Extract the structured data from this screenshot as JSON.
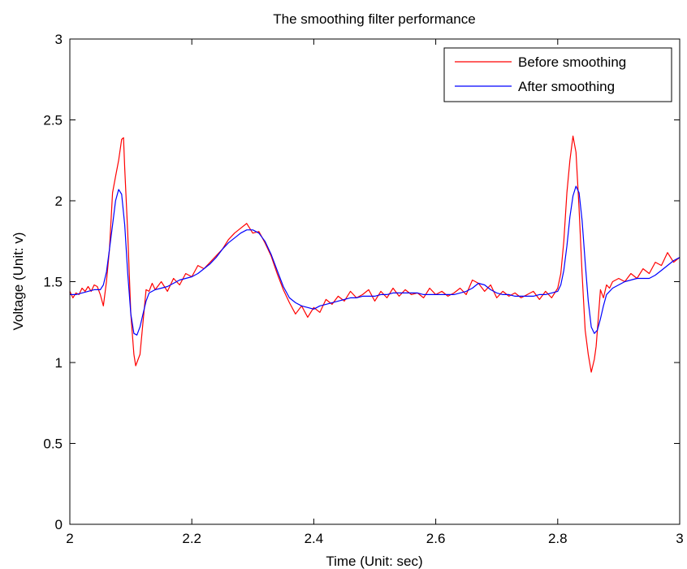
{
  "chart_data": {
    "type": "line",
    "title": "The smoothing filter performance",
    "xlabel": "Time (Unit: sec)",
    "ylabel": "Voltage (Unit: v)",
    "xlim": [
      2,
      3
    ],
    "ylim": [
      0,
      3
    ],
    "xticks": [
      2,
      2.2,
      2.4,
      2.6,
      2.8,
      3
    ],
    "xtick_labels": [
      "2",
      "2.2",
      "2.4",
      "2.6",
      "2.8",
      "3"
    ],
    "yticks": [
      0,
      0.5,
      1,
      1.5,
      2,
      2.5,
      3
    ],
    "ytick_labels": [
      "0",
      "0.5",
      "1",
      "1.5",
      "2",
      "2.5",
      "3"
    ],
    "grid": false,
    "legend_position": "top-right",
    "series": [
      {
        "name": "Before smoothing",
        "color": "#ff0000",
        "x": [
          2.0,
          2.005,
          2.01,
          2.015,
          2.02,
          2.025,
          2.03,
          2.035,
          2.04,
          2.045,
          2.05,
          2.055,
          2.06,
          2.065,
          2.07,
          2.075,
          2.08,
          2.085,
          2.088,
          2.09,
          2.095,
          2.1,
          2.105,
          2.108,
          2.112,
          2.115,
          2.12,
          2.125,
          2.13,
          2.135,
          2.14,
          2.15,
          2.16,
          2.17,
          2.18,
          2.19,
          2.2,
          2.21,
          2.22,
          2.23,
          2.24,
          2.25,
          2.26,
          2.27,
          2.28,
          2.29,
          2.3,
          2.31,
          2.32,
          2.33,
          2.34,
          2.35,
          2.36,
          2.37,
          2.38,
          2.39,
          2.4,
          2.41,
          2.42,
          2.43,
          2.44,
          2.45,
          2.46,
          2.47,
          2.48,
          2.49,
          2.5,
          2.51,
          2.52,
          2.53,
          2.54,
          2.55,
          2.56,
          2.57,
          2.58,
          2.59,
          2.6,
          2.61,
          2.62,
          2.63,
          2.64,
          2.65,
          2.66,
          2.67,
          2.68,
          2.69,
          2.7,
          2.71,
          2.72,
          2.73,
          2.74,
          2.75,
          2.76,
          2.77,
          2.78,
          2.79,
          2.8,
          2.805,
          2.81,
          2.815,
          2.82,
          2.825,
          2.83,
          2.835,
          2.84,
          2.845,
          2.85,
          2.855,
          2.86,
          2.863,
          2.866,
          2.87,
          2.875,
          2.88,
          2.885,
          2.89,
          2.9,
          2.91,
          2.92,
          2.93,
          2.94,
          2.95,
          2.96,
          2.97,
          2.98,
          2.99,
          3.0
        ],
        "y": [
          1.44,
          1.4,
          1.43,
          1.42,
          1.46,
          1.44,
          1.47,
          1.44,
          1.48,
          1.47,
          1.42,
          1.35,
          1.5,
          1.7,
          2.05,
          2.15,
          2.25,
          2.38,
          2.39,
          2.2,
          1.8,
          1.3,
          1.05,
          0.98,
          1.02,
          1.05,
          1.25,
          1.45,
          1.44,
          1.49,
          1.45,
          1.5,
          1.44,
          1.52,
          1.48,
          1.55,
          1.53,
          1.6,
          1.58,
          1.62,
          1.66,
          1.7,
          1.76,
          1.8,
          1.83,
          1.86,
          1.8,
          1.81,
          1.74,
          1.66,
          1.55,
          1.45,
          1.37,
          1.3,
          1.35,
          1.28,
          1.34,
          1.31,
          1.39,
          1.36,
          1.41,
          1.38,
          1.44,
          1.4,
          1.42,
          1.45,
          1.38,
          1.44,
          1.4,
          1.46,
          1.41,
          1.45,
          1.42,
          1.43,
          1.4,
          1.46,
          1.42,
          1.44,
          1.41,
          1.43,
          1.46,
          1.42,
          1.51,
          1.49,
          1.44,
          1.48,
          1.4,
          1.44,
          1.41,
          1.43,
          1.4,
          1.42,
          1.44,
          1.39,
          1.44,
          1.4,
          1.46,
          1.55,
          1.75,
          2.05,
          2.25,
          2.4,
          2.3,
          1.95,
          1.55,
          1.2,
          1.05,
          0.94,
          1.02,
          1.1,
          1.25,
          1.45,
          1.4,
          1.48,
          1.46,
          1.5,
          1.52,
          1.5,
          1.55,
          1.52,
          1.58,
          1.55,
          1.62,
          1.6,
          1.68,
          1.62,
          1.65
        ]
      },
      {
        "name": "After smoothing",
        "color": "#0000ff",
        "x": [
          2.0,
          2.01,
          2.02,
          2.03,
          2.04,
          2.05,
          2.055,
          2.06,
          2.065,
          2.07,
          2.075,
          2.08,
          2.085,
          2.09,
          2.095,
          2.1,
          2.105,
          2.11,
          2.115,
          2.12,
          2.125,
          2.13,
          2.14,
          2.15,
          2.16,
          2.17,
          2.18,
          2.19,
          2.2,
          2.21,
          2.22,
          2.23,
          2.24,
          2.25,
          2.26,
          2.27,
          2.28,
          2.29,
          2.3,
          2.31,
          2.32,
          2.33,
          2.34,
          2.35,
          2.36,
          2.37,
          2.38,
          2.39,
          2.4,
          2.41,
          2.42,
          2.43,
          2.44,
          2.45,
          2.46,
          2.47,
          2.48,
          2.49,
          2.5,
          2.51,
          2.52,
          2.53,
          2.54,
          2.55,
          2.56,
          2.57,
          2.58,
          2.59,
          2.6,
          2.61,
          2.62,
          2.63,
          2.64,
          2.65,
          2.66,
          2.67,
          2.68,
          2.69,
          2.7,
          2.71,
          2.72,
          2.73,
          2.74,
          2.75,
          2.76,
          2.77,
          2.78,
          2.79,
          2.8,
          2.805,
          2.81,
          2.815,
          2.82,
          2.825,
          2.83,
          2.835,
          2.84,
          2.845,
          2.85,
          2.855,
          2.86,
          2.865,
          2.87,
          2.875,
          2.88,
          2.89,
          2.9,
          2.91,
          2.92,
          2.93,
          2.94,
          2.95,
          2.96,
          2.97,
          2.98,
          2.99,
          3.0
        ],
        "y": [
          1.42,
          1.42,
          1.43,
          1.44,
          1.45,
          1.45,
          1.48,
          1.56,
          1.7,
          1.85,
          2.0,
          2.07,
          2.04,
          1.85,
          1.55,
          1.3,
          1.18,
          1.17,
          1.22,
          1.3,
          1.38,
          1.43,
          1.45,
          1.46,
          1.47,
          1.49,
          1.51,
          1.52,
          1.53,
          1.55,
          1.58,
          1.61,
          1.65,
          1.7,
          1.74,
          1.77,
          1.8,
          1.82,
          1.82,
          1.8,
          1.75,
          1.67,
          1.57,
          1.47,
          1.4,
          1.37,
          1.35,
          1.34,
          1.33,
          1.35,
          1.36,
          1.37,
          1.38,
          1.39,
          1.4,
          1.4,
          1.41,
          1.41,
          1.41,
          1.42,
          1.42,
          1.43,
          1.43,
          1.43,
          1.43,
          1.43,
          1.42,
          1.42,
          1.42,
          1.42,
          1.42,
          1.42,
          1.43,
          1.44,
          1.46,
          1.49,
          1.48,
          1.45,
          1.43,
          1.42,
          1.42,
          1.41,
          1.41,
          1.41,
          1.41,
          1.42,
          1.42,
          1.43,
          1.44,
          1.48,
          1.57,
          1.72,
          1.9,
          2.03,
          2.09,
          2.05,
          1.88,
          1.62,
          1.38,
          1.22,
          1.18,
          1.2,
          1.27,
          1.35,
          1.42,
          1.46,
          1.48,
          1.5,
          1.51,
          1.52,
          1.52,
          1.52,
          1.54,
          1.57,
          1.6,
          1.63,
          1.65
        ]
      }
    ]
  }
}
